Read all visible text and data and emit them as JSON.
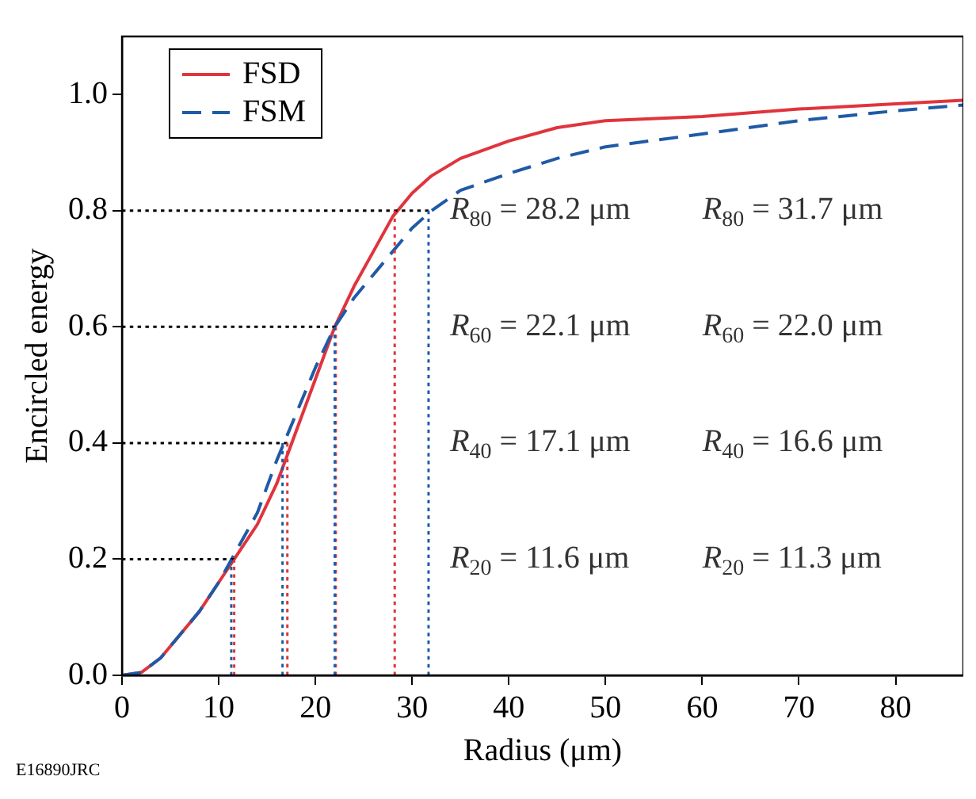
{
  "chart_data": {
    "type": "line",
    "xlabel": "Radius (μm)",
    "ylabel": "Encircled energy",
    "xlim": [
      0,
      87
    ],
    "ylim": [
      0,
      1.1
    ],
    "xticks": [
      0,
      10,
      20,
      30,
      40,
      50,
      60,
      70,
      80
    ],
    "yticks": [
      {
        "value": 0,
        "label": "0.0"
      },
      {
        "value": 0.2,
        "label": "0.2"
      },
      {
        "value": 0.4,
        "label": "0.4"
      },
      {
        "value": 0.6,
        "label": "0.6"
      },
      {
        "value": 0.8,
        "label": "0.8"
      },
      {
        "value": 1,
        "label": "1.0"
      }
    ],
    "grid": false,
    "legend": "top left",
    "marker": "none",
    "series": [
      {
        "name": "FSD",
        "color": "#e0343c",
        "line_style": "solid",
        "x": [
          0,
          2,
          4,
          6,
          8,
          10,
          12,
          14,
          16,
          18,
          20,
          22,
          24,
          26,
          28,
          30,
          32,
          35,
          40,
          45,
          50,
          60,
          70,
          80,
          87
        ],
        "values": [
          0,
          0.005,
          0.03,
          0.07,
          0.11,
          0.16,
          0.21,
          0.26,
          0.33,
          0.42,
          0.51,
          0.6,
          0.67,
          0.73,
          0.79,
          0.83,
          0.86,
          0.89,
          0.92,
          0.943,
          0.955,
          0.962,
          0.975,
          0.984,
          0.99
        ]
      },
      {
        "name": "FSM",
        "color": "#1f5aa6",
        "line_style": "dashed",
        "x": [
          0,
          2,
          4,
          6,
          8,
          10,
          12,
          14,
          16,
          18,
          20,
          22,
          24,
          26,
          28,
          30,
          32,
          35,
          40,
          45,
          50,
          60,
          70,
          80,
          87
        ],
        "values": [
          0,
          0.005,
          0.03,
          0.07,
          0.11,
          0.16,
          0.22,
          0.28,
          0.37,
          0.45,
          0.53,
          0.6,
          0.65,
          0.69,
          0.73,
          0.77,
          0.8,
          0.835,
          0.864,
          0.89,
          0.91,
          0.932,
          0.955,
          0.972,
          0.982
        ]
      },
      {
        "color": "#000000",
        "line_style": "dotted",
        "x": [
          0,
          11.6
        ],
        "values": [
          0.2,
          0.2
        ]
      },
      {
        "color": "#000000",
        "line_style": "dotted",
        "x": [
          0,
          17.1
        ],
        "values": [
          0.4,
          0.4
        ]
      },
      {
        "color": "#000000",
        "line_style": "dotted",
        "x": [
          0,
          22.1
        ],
        "values": [
          0.6,
          0.6
        ]
      },
      {
        "color": "#000000",
        "line_style": "dotted",
        "x": [
          0,
          31.7
        ],
        "values": [
          0.8,
          0.8
        ]
      },
      {
        "color": "#e0343c",
        "line_style": "dotted",
        "x": [
          11.6,
          11.6
        ],
        "values": [
          0,
          0.2
        ]
      },
      {
        "color": "#e0343c",
        "line_style": "dotted",
        "x": [
          17.1,
          17.1
        ],
        "values": [
          0,
          0.4
        ]
      },
      {
        "color": "#e0343c",
        "line_style": "dotted",
        "x": [
          22.1,
          22.1
        ],
        "values": [
          0,
          0.6
        ]
      },
      {
        "color": "#e0343c",
        "line_style": "dotted",
        "x": [
          28.2,
          28.2
        ],
        "values": [
          0,
          0.8
        ]
      },
      {
        "color": "#1f5aa6",
        "line_style": "dotted",
        "x": [
          11.3,
          11.3
        ],
        "values": [
          0,
          0.2
        ]
      },
      {
        "color": "#1f5aa6",
        "line_style": "dotted",
        "x": [
          16.6,
          16.6
        ],
        "values": [
          0,
          0.4
        ]
      },
      {
        "color": "#1f5aa6",
        "line_style": "dotted",
        "x": [
          22.0,
          22.0
        ],
        "values": [
          0,
          0.6
        ]
      },
      {
        "color": "#1f5aa6",
        "line_style": "dotted",
        "x": [
          31.7,
          31.7
        ],
        "values": [
          0,
          0.8
        ]
      }
    ],
    "annotations": [
      "R$_{80}$ = 28.2 μm",
      "R$_{80}$ = 31.7 μm",
      "R$_{60}$ = 22.1 μm",
      "R$_{60}$ = 22.0 μm",
      "R$_{40}$ = 17.1 μm",
      "R$_{40}$ = 16.6 μm",
      "R$_{20}$ = 11.6 μm",
      "R$_{20}$ = 11.3 μm",
      "E16890JRC"
    ]
  }
}
